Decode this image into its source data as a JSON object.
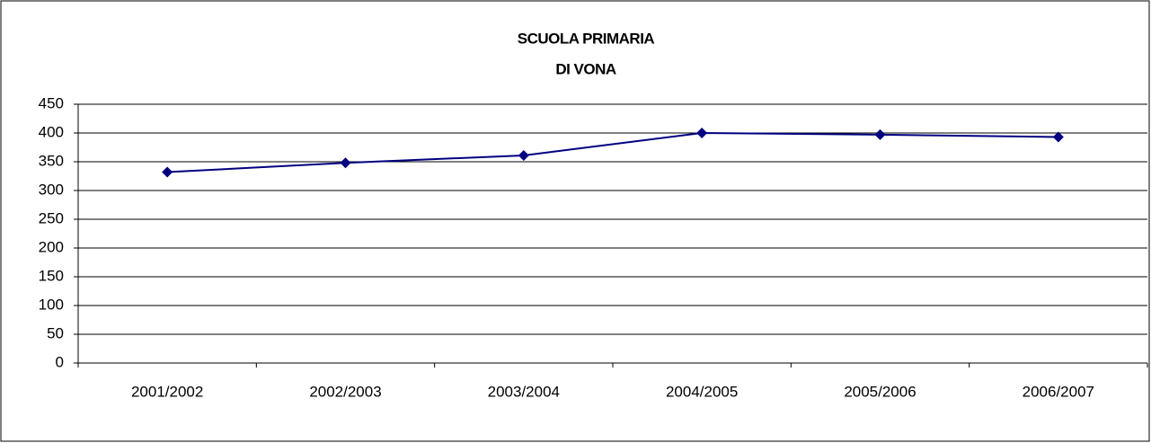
{
  "chart_data": {
    "type": "line",
    "title": [
      "SCUOLA PRIMARIA",
      "DI VONA"
    ],
    "categories": [
      "2001/2002",
      "2002/2003",
      "2003/2004",
      "2004/2005",
      "2005/2006",
      "2006/2007"
    ],
    "values": [
      332,
      348,
      361,
      400,
      397,
      393
    ],
    "color": "#000080",
    "ylim": [
      0,
      450
    ],
    "yticks": [
      0,
      50,
      100,
      150,
      200,
      250,
      300,
      350,
      400,
      450
    ],
    "grid": true
  }
}
